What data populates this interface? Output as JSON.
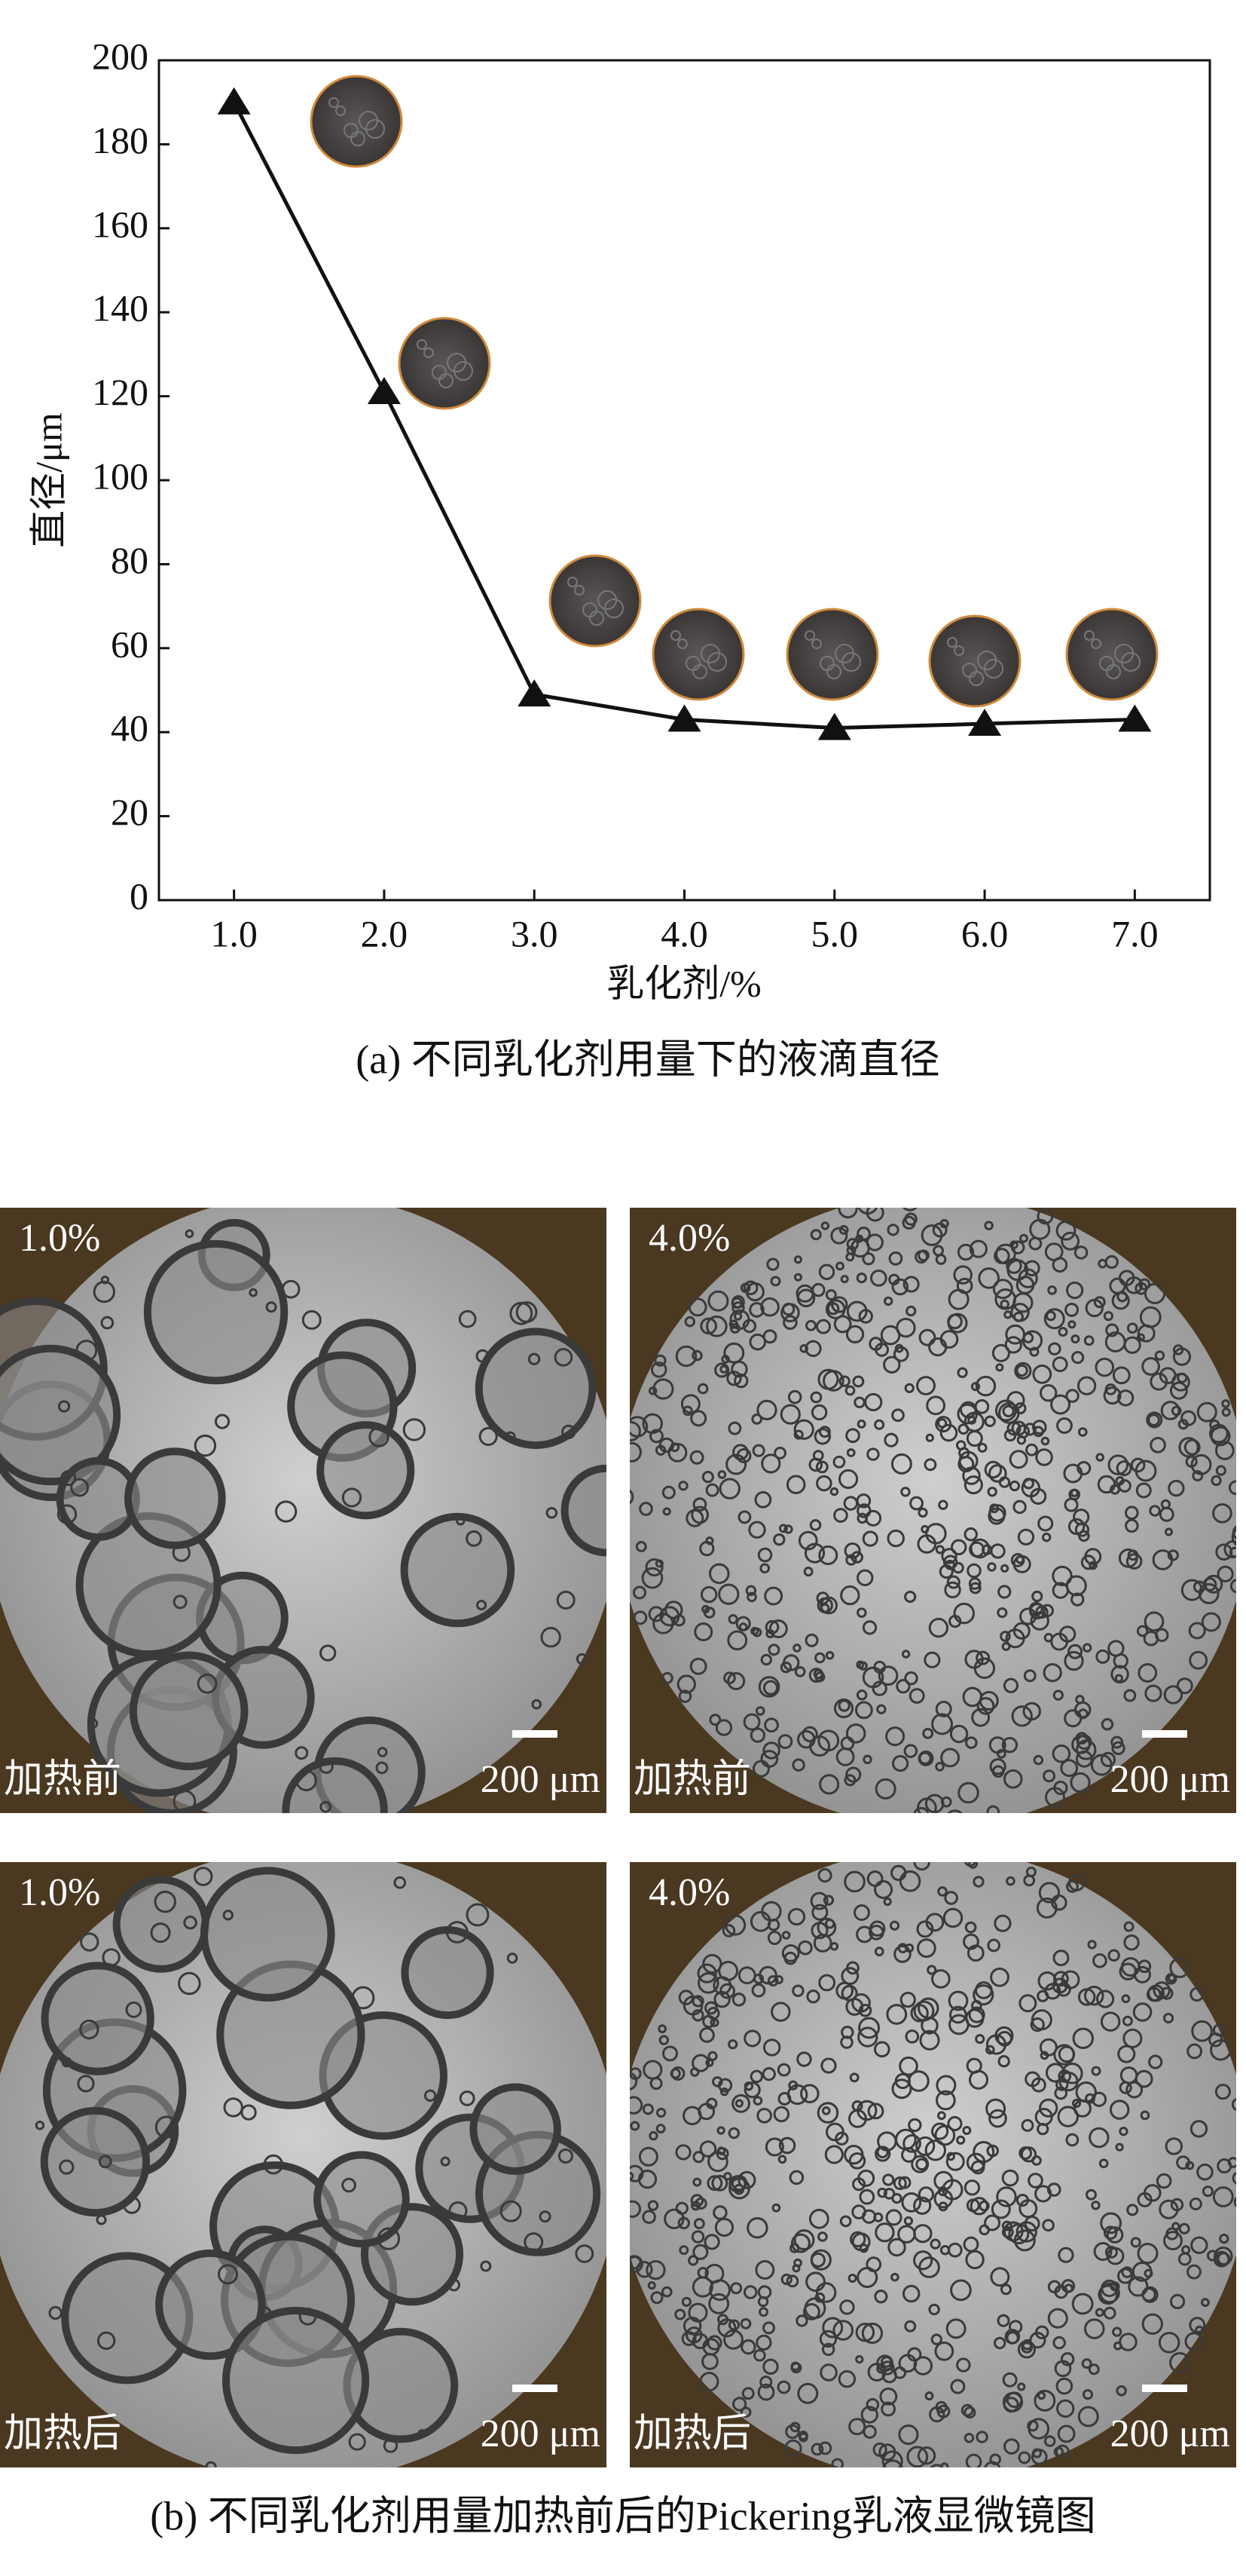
{
  "chart_data": {
    "type": "line",
    "x_label": "乳化剂/%",
    "y_label": "直径/μm",
    "caption": "(a) 不同乳化剂用量下的液滴直径",
    "x": [
      1,
      2,
      3,
      4,
      5,
      6,
      7
    ],
    "values": [
      190,
      121,
      49,
      43,
      41,
      42,
      43
    ],
    "color": "#111111",
    "xlim": [
      0.5,
      7.5
    ],
    "xticks": [
      {
        "value": 1,
        "label": "1.0"
      },
      {
        "value": 2,
        "label": "2.0"
      },
      {
        "value": 3,
        "label": "3.0"
      },
      {
        "value": 4,
        "label": "4.0"
      },
      {
        "value": 5,
        "label": "5.0"
      },
      {
        "value": 6,
        "label": "6.0"
      },
      {
        "value": 7,
        "label": "7.0"
      }
    ],
    "ylim": [
      0,
      200
    ],
    "yticks": [
      0,
      20,
      40,
      60,
      80,
      100,
      120,
      140,
      160,
      180,
      200
    ]
  },
  "figure_b": {
    "caption": "(b) 不同乳化剂用量加热前后的Pickering乳液显微镜图",
    "panels": [
      {
        "dose": "1.0%",
        "state": "加热前",
        "scale": "200 μm"
      },
      {
        "dose": "4.0%",
        "state": "加热前",
        "scale": "200 μm"
      },
      {
        "dose": "1.0%",
        "state": "加热后",
        "scale": "200 μm"
      },
      {
        "dose": "4.0%",
        "state": "加热后",
        "scale": "200 μm"
      }
    ]
  }
}
